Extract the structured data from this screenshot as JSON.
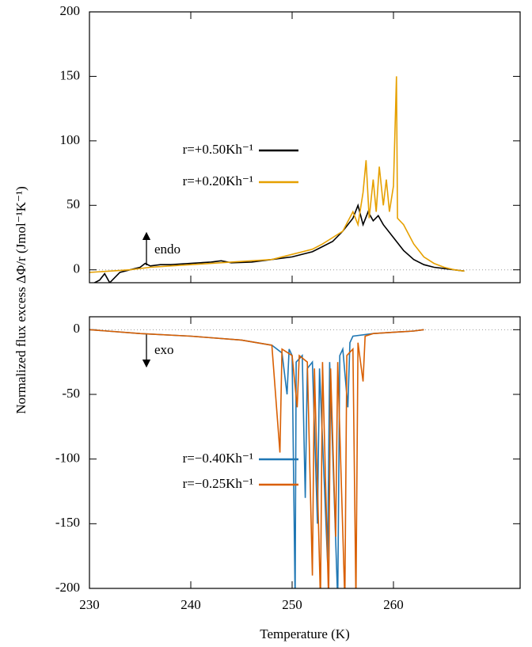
{
  "chart_data": [
    {
      "type": "line",
      "ylabel": "Normalized flux excess ΔΦ/r (Jmol⁻¹K⁻¹)",
      "annotation": "endo",
      "xlim": [
        230,
        272.5
      ],
      "ylim": [
        -10,
        200
      ],
      "yticks": [
        0,
        50,
        100,
        150,
        200
      ],
      "series": [
        {
          "name": "r=+0.50Kh⁻¹",
          "color": "#000000",
          "x": [
            230,
            231,
            231.5,
            232,
            233,
            234,
            235,
            235.5,
            236,
            237,
            238,
            240,
            242,
            243,
            244,
            246,
            248,
            250,
            252,
            253,
            254,
            255,
            256,
            256.5,
            257,
            257.5,
            258,
            258.5,
            259,
            260,
            261,
            262,
            263,
            264,
            265,
            266,
            267
          ],
          "values": [
            -12,
            -8,
            -3,
            -10,
            -2,
            0,
            2,
            5,
            3,
            4,
            4,
            5,
            6,
            7,
            5.5,
            6,
            8,
            10,
            14,
            18,
            22,
            30,
            40,
            50,
            35,
            45,
            38,
            42,
            35,
            25,
            15,
            8,
            4,
            2,
            1,
            0,
            -1
          ]
        },
        {
          "name": "r=+0.20Kh⁻¹",
          "color": "#e6a000",
          "x": [
            230,
            232,
            234,
            236,
            238,
            240,
            242,
            244,
            246,
            248,
            250,
            252,
            253,
            254,
            255,
            256,
            256.5,
            257,
            257.3,
            257.6,
            258,
            258.3,
            258.6,
            259,
            259.3,
            259.6,
            260,
            260.3,
            260.4,
            261,
            262,
            263,
            264,
            265,
            266,
            267
          ],
          "values": [
            -2,
            -1,
            0,
            2,
            3,
            4,
            5,
            6,
            7,
            8,
            12,
            16,
            20,
            25,
            30,
            45,
            35,
            60,
            85,
            40,
            70,
            45,
            80,
            50,
            70,
            45,
            65,
            150,
            40,
            35,
            20,
            10,
            5,
            2,
            0,
            -1
          ]
        }
      ]
    },
    {
      "type": "line",
      "xlabel": "Temperature (K)",
      "annotation": "exo",
      "xlim": [
        230,
        272.5
      ],
      "ylim": [
        -200,
        10
      ],
      "xticks": [
        230,
        240,
        250,
        260
      ],
      "yticks": [
        -200,
        -150,
        -100,
        -50,
        0
      ],
      "series": [
        {
          "name": "r=−0.40Kh⁻¹",
          "color": "#1f77b4",
          "x": [
            230,
            235,
            240,
            245,
            248,
            249,
            249.5,
            249.7,
            250,
            250.3,
            250.4,
            251,
            251.3,
            251.5,
            252,
            252.5,
            252.7,
            253.5,
            253.7,
            254.5,
            254.7,
            255,
            255.5,
            255.7,
            256,
            258,
            260,
            262,
            263
          ],
          "values": [
            0,
            -3,
            -5,
            -8,
            -12,
            -18,
            -50,
            -15,
            -20,
            -210,
            -25,
            -20,
            -130,
            -30,
            -25,
            -150,
            -30,
            -180,
            -25,
            -210,
            -20,
            -15,
            -60,
            -10,
            -5,
            -3,
            -2,
            -1,
            0
          ]
        },
        {
          "name": "r=−0.25Kh⁻¹",
          "color": "#d95f02",
          "x": [
            230,
            235,
            240,
            245,
            248,
            248.8,
            249,
            250,
            250.5,
            250.7,
            251.5,
            252,
            252.2,
            252.8,
            253,
            253.6,
            253.8,
            254.3,
            254.5,
            255.2,
            255.4,
            256,
            256.3,
            256.5,
            257,
            257.2,
            258,
            260,
            262,
            263
          ],
          "values": [
            0,
            -3,
            -5,
            -8,
            -12,
            -95,
            -15,
            -20,
            -60,
            -20,
            -25,
            -190,
            -30,
            -210,
            -25,
            -210,
            -30,
            -160,
            -25,
            -210,
            -20,
            -15,
            -210,
            -10,
            -40,
            -5,
            -3,
            -2,
            -1,
            0
          ]
        }
      ]
    }
  ]
}
